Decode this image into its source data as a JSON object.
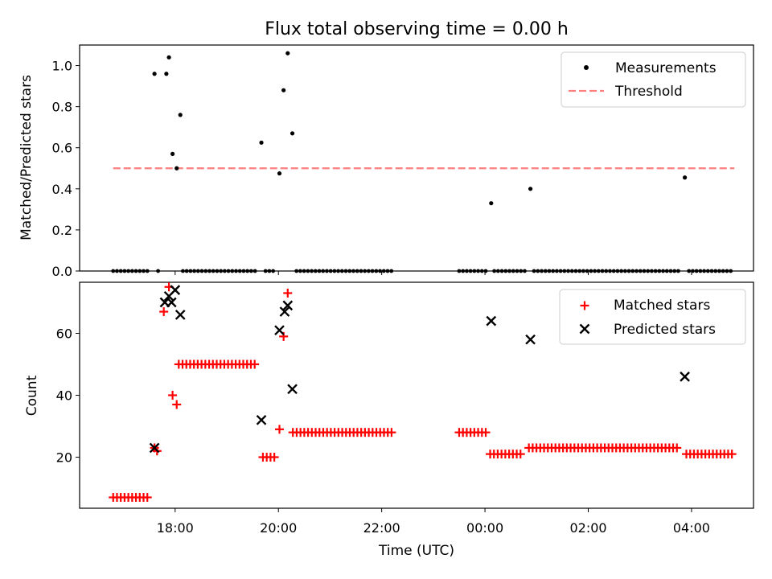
{
  "title": "Flux total observing time = 0.00 h",
  "chart_data": [
    {
      "type": "scatter",
      "ylabel": "Matched/Predicted stars",
      "xlim_hours": [
        16.15,
        29.2
      ],
      "ylim": [
        0,
        1.1
      ],
      "yticks": [
        0.0,
        0.2,
        0.4,
        0.6,
        0.8,
        1.0
      ],
      "ytick_labels": [
        "0.0",
        "0.2",
        "0.4",
        "0.6",
        "0.8",
        "1.0"
      ],
      "legend": {
        "position": "top-right",
        "measurements": "Measurements",
        "threshold": "Threshold"
      },
      "threshold": {
        "value": 0.5,
        "x_start": 16.8,
        "x_end": 28.83
      },
      "measurements_nonzero": [
        {
          "x": 17.6,
          "y": 0.96
        },
        {
          "x": 17.83,
          "y": 0.96
        },
        {
          "x": 17.88,
          "y": 1.04
        },
        {
          "x": 17.95,
          "y": 0.57
        },
        {
          "x": 18.03,
          "y": 0.5
        },
        {
          "x": 18.1,
          "y": 0.76
        },
        {
          "x": 19.67,
          "y": 0.625
        },
        {
          "x": 20.02,
          "y": 0.475
        },
        {
          "x": 20.1,
          "y": 0.88
        },
        {
          "x": 20.18,
          "y": 1.06
        },
        {
          "x": 20.27,
          "y": 0.67
        },
        {
          "x": 24.12,
          "y": 0.33
        },
        {
          "x": 24.88,
          "y": 0.4
        },
        {
          "x": 27.87,
          "y": 0.455
        }
      ],
      "measurements_zero_ranges": [
        [
          16.8,
          17.53
        ],
        [
          17.67,
          17.67
        ],
        [
          18.15,
          19.55
        ],
        [
          19.75,
          19.95
        ],
        [
          20.35,
          22.25
        ],
        [
          23.5,
          24.05
        ],
        [
          24.18,
          24.8
        ],
        [
          24.95,
          27.8
        ],
        [
          27.95,
          28.83
        ]
      ]
    },
    {
      "type": "scatter",
      "xlabel": "Time (UTC)",
      "ylabel": "Count",
      "xlim_hours": [
        16.15,
        29.2
      ],
      "ylim": [
        3.5,
        76.5
      ],
      "yticks": [
        20,
        40,
        60
      ],
      "ytick_labels": [
        "20",
        "40",
        "60"
      ],
      "xticks_hours": [
        18,
        20,
        22,
        24,
        26,
        28
      ],
      "xtick_labels": [
        "18:00",
        "20:00",
        "22:00",
        "00:00",
        "02:00",
        "04:00"
      ],
      "legend": {
        "position": "top-right",
        "matched": "Matched stars",
        "predicted": "Predicted stars"
      },
      "matched_runs": [
        {
          "x0": 16.8,
          "x1": 17.53,
          "y": 7
        },
        {
          "x0": 18.07,
          "x1": 19.6,
          "y": 50
        },
        {
          "x0": 19.7,
          "x1": 19.95,
          "y": 20
        },
        {
          "x0": 20.28,
          "x1": 22.2,
          "y": 28
        },
        {
          "x0": 23.5,
          "x1": 24.05,
          "y": 28
        },
        {
          "x0": 24.1,
          "x1": 24.75,
          "y": 21
        },
        {
          "x0": 24.85,
          "x1": 27.75,
          "y": 23
        },
        {
          "x0": 27.9,
          "x1": 28.83,
          "y": 21
        }
      ],
      "matched_points": [
        {
          "x": 17.6,
          "y": 23
        },
        {
          "x": 17.65,
          "y": 22
        },
        {
          "x": 17.78,
          "y": 67
        },
        {
          "x": 17.88,
          "y": 75
        },
        {
          "x": 17.95,
          "y": 40
        },
        {
          "x": 18.03,
          "y": 37
        },
        {
          "x": 20.02,
          "y": 29
        },
        {
          "x": 20.1,
          "y": 59
        },
        {
          "x": 20.18,
          "y": 73
        }
      ],
      "predicted_points": [
        {
          "x": 17.6,
          "y": 23
        },
        {
          "x": 17.8,
          "y": 70
        },
        {
          "x": 17.88,
          "y": 72
        },
        {
          "x": 17.93,
          "y": 70
        },
        {
          "x": 18.0,
          "y": 74
        },
        {
          "x": 18.1,
          "y": 66
        },
        {
          "x": 19.67,
          "y": 32
        },
        {
          "x": 20.02,
          "y": 61
        },
        {
          "x": 20.12,
          "y": 67
        },
        {
          "x": 20.18,
          "y": 69
        },
        {
          "x": 20.27,
          "y": 42
        },
        {
          "x": 24.12,
          "y": 64
        },
        {
          "x": 24.88,
          "y": 58
        },
        {
          "x": 27.87,
          "y": 46
        }
      ]
    }
  ],
  "colors": {
    "measurement": "#000000",
    "threshold": "#ff7f7f",
    "matched": "#ff0000",
    "predicted": "#000000"
  }
}
